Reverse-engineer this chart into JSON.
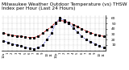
{
  "title": "Milwaukee Weather Outdoor Temperature (vs) THSW Index per Hour (Last 24 Hours)",
  "title_fontsize": 4.2,
  "title_color": "#000000",
  "background_color": "#ffffff",
  "plot_bg_color": "#ffffff",
  "grid_color": "#999999",
  "hours": [
    0,
    1,
    2,
    3,
    4,
    5,
    6,
    7,
    8,
    9,
    10,
    11,
    12,
    13,
    14,
    15,
    16,
    17,
    18,
    19,
    20,
    21,
    22,
    23
  ],
  "hour_labels": [
    "12a",
    "1",
    "2",
    "3",
    "4",
    "5",
    "6",
    "7",
    "8",
    "9",
    "10",
    "11",
    "12p",
    "1",
    "2",
    "3",
    "4",
    "5",
    "6",
    "7",
    "8",
    "9",
    "10",
    "11"
  ],
  "temp": [
    32,
    30,
    28,
    27,
    26,
    25,
    24,
    24,
    26,
    32,
    38,
    44,
    52,
    56,
    54,
    52,
    48,
    44,
    40,
    36,
    33,
    30,
    28,
    26
  ],
  "thsw": [
    18,
    15,
    12,
    10,
    8,
    6,
    4,
    3,
    5,
    10,
    20,
    32,
    50,
    60,
    56,
    50,
    42,
    34,
    26,
    20,
    16,
    12,
    8,
    5
  ],
  "temp_color": "#cc0000",
  "thsw_color": "#0000cc",
  "ylim_min": 0,
  "ylim_max": 65,
  "ytick_values": [
    10,
    20,
    30,
    40,
    50,
    60
  ],
  "ytick_labels": [
    "10",
    "20",
    "30",
    "40",
    "50",
    "60"
  ],
  "ylabel_fontsize": 3.2,
  "xlabel_fontsize": 2.8,
  "linewidth_temp": 0.6,
  "linewidth_thsw": 0.6,
  "markersize": 1.2,
  "marker": "s"
}
